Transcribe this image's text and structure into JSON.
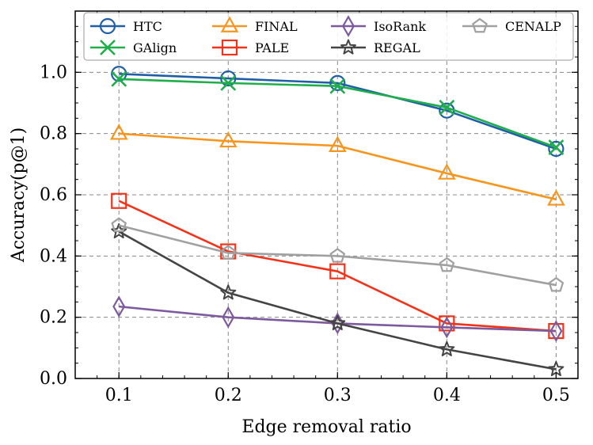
{
  "chart_data": {
    "type": "line",
    "title": "",
    "xlabel": "Edge removal ratio",
    "ylabel": "Accuracy(p@1)",
    "x": [
      0.1,
      0.2,
      0.3,
      0.4,
      0.5
    ],
    "xticks": [
      "0.1",
      "0.2",
      "0.3",
      "0.4",
      "0.5"
    ],
    "yticks": [
      "0.0",
      "0.2",
      "0.4",
      "0.6",
      "0.8",
      "1.0"
    ],
    "xlim": [
      0.06,
      0.52
    ],
    "ylim": [
      0.0,
      1.2
    ],
    "grid": true,
    "legend_position": "top",
    "series": [
      {
        "name": "HTC",
        "color": "#1f5fa6",
        "marker": "circle",
        "values": [
          0.995,
          0.98,
          0.965,
          0.875,
          0.75
        ]
      },
      {
        "name": "GAlign",
        "color": "#1fae4b",
        "marker": "x",
        "values": [
          0.978,
          0.965,
          0.955,
          0.885,
          0.755
        ]
      },
      {
        "name": "FINAL",
        "color": "#f7961e",
        "marker": "triangle",
        "values": [
          0.8,
          0.775,
          0.76,
          0.67,
          0.585
        ]
      },
      {
        "name": "PALE",
        "color": "#f2331a",
        "marker": "square",
        "values": [
          0.58,
          0.415,
          0.35,
          0.18,
          0.155
        ]
      },
      {
        "name": "IsoRank",
        "color": "#7d5a9e",
        "marker": "diamond",
        "values": [
          0.235,
          0.2,
          0.18,
          0.167,
          0.155
        ]
      },
      {
        "name": "REGAL",
        "color": "#444444",
        "marker": "star",
        "values": [
          0.48,
          0.28,
          0.18,
          0.095,
          0.03
        ]
      },
      {
        "name": "CENALP",
        "color": "#a0a0a0",
        "marker": "pentagon",
        "values": [
          0.5,
          0.41,
          0.4,
          0.37,
          0.305
        ]
      }
    ]
  }
}
